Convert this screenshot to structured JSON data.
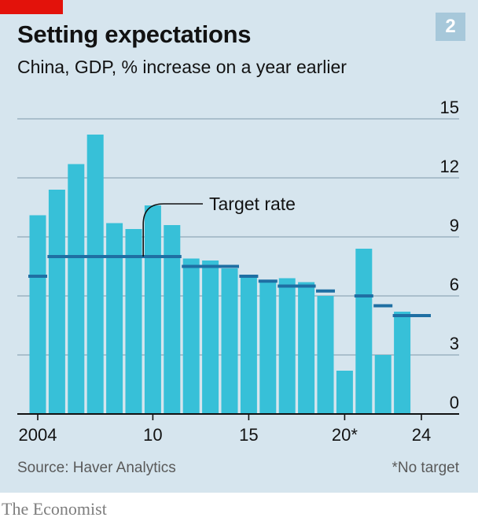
{
  "header": {
    "title": "Setting expectations",
    "subtitle": "China, GDP, % increase on a year earlier",
    "chart_number": "2"
  },
  "footer": {
    "source": "Source: Haver Analytics",
    "note": "*No target",
    "brand": "The Economist"
  },
  "colors": {
    "bar": "#37c0d8",
    "target": "#1f6fa3",
    "grid": "#8fa9b8",
    "accent": "#e3120b"
  },
  "chart_data": {
    "type": "bar",
    "title": "Setting expectations",
    "subtitle": "China, GDP, % increase on a year earlier",
    "x": [
      2004,
      2005,
      2006,
      2007,
      2008,
      2009,
      2010,
      2011,
      2012,
      2013,
      2014,
      2015,
      2016,
      2017,
      2018,
      2019,
      2020,
      2021,
      2022,
      2023,
      2024
    ],
    "x_tick_labels": [
      "2004",
      "10",
      "15",
      "20*",
      "24"
    ],
    "x_tick_years": [
      2004,
      2010,
      2015,
      2020,
      2024
    ],
    "y_ticks": [
      0,
      3,
      6,
      9,
      12,
      15
    ],
    "ylim": [
      0,
      15
    ],
    "y_axis_side": "right",
    "grid": true,
    "series": [
      {
        "kind": "bar",
        "values": [
          10.1,
          11.4,
          12.7,
          14.2,
          9.7,
          9.4,
          10.6,
          9.6,
          7.9,
          7.8,
          7.4,
          7.0,
          6.8,
          6.9,
          6.7,
          6.0,
          2.2,
          8.4,
          3.0,
          5.2,
          null
        ]
      },
      {
        "kind": "target-marker",
        "annotation": "Target rate",
        "segments": [
          {
            "from": 2004,
            "to": 2004,
            "value": 7.0
          },
          {
            "from": 2005,
            "to": 2011,
            "value": 8.0
          },
          {
            "from": 2012,
            "to": 2014,
            "value": 7.5
          },
          {
            "from": 2015,
            "to": 2015,
            "value": 7.0
          },
          {
            "from": 2016,
            "to": 2016,
            "value": 6.75
          },
          {
            "from": 2017,
            "to": 2018,
            "value": 6.5
          },
          {
            "from": 2019,
            "to": 2019,
            "value": 6.25
          },
          {
            "from": 2021,
            "to": 2021,
            "value": 6.0
          },
          {
            "from": 2022,
            "to": 2022,
            "value": 5.5
          },
          {
            "from": 2023,
            "to": 2024,
            "value": 5.0
          }
        ]
      }
    ]
  }
}
